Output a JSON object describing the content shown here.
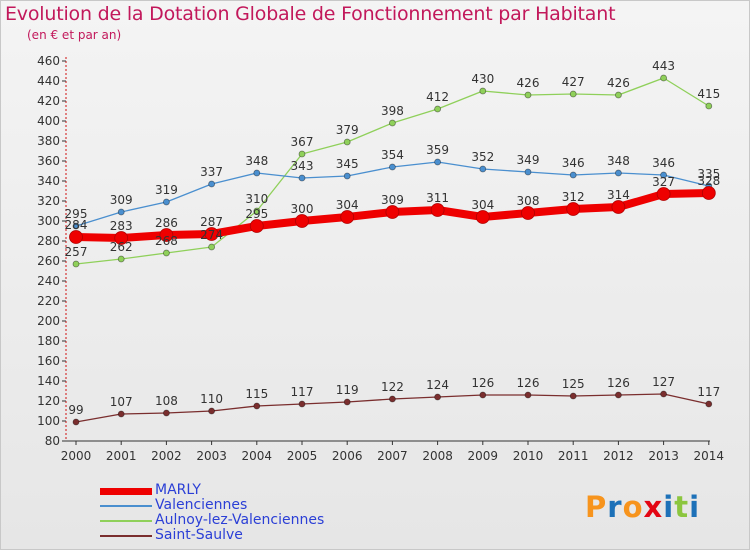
{
  "chart_data": {
    "type": "line",
    "title": "Evolution de la Dotation Globale de Fonctionnement par Habitant",
    "subtitle": "(en € et par an)",
    "x": [
      "2000",
      "2001",
      "2002",
      "2003",
      "2004",
      "2005",
      "2006",
      "2007",
      "2008",
      "2009",
      "2010",
      "2011",
      "2012",
      "2013",
      "2014"
    ],
    "ylim": [
      80,
      460
    ],
    "yticks": [
      80,
      100,
      120,
      140,
      160,
      180,
      200,
      220,
      240,
      260,
      280,
      300,
      320,
      340,
      360,
      380,
      400,
      420,
      440,
      460
    ],
    "grid": false,
    "legend_position": "bottom-left",
    "series": [
      {
        "name": "MARLY",
        "color": "#ee0000",
        "values": [
          284,
          283,
          286,
          287,
          295,
          300,
          304,
          309,
          311,
          304,
          308,
          312,
          314,
          327,
          328
        ],
        "labels": [
          "284",
          "283",
          "286",
          "287",
          "295",
          "300",
          "304",
          "309",
          "311",
          "304",
          "308",
          "312",
          "314",
          "327",
          "328"
        ]
      },
      {
        "name": "Valenciennes",
        "color": "#4a8fcf",
        "values": [
          295,
          309,
          319,
          337,
          348,
          343,
          345,
          354,
          359,
          352,
          349,
          346,
          348,
          346,
          335
        ],
        "labels": [
          "295",
          "309",
          "319",
          "337",
          "348",
          "343",
          "345",
          "354",
          "359",
          "352",
          "349",
          "346",
          "348",
          "346",
          "335"
        ]
      },
      {
        "name": "Aulnoy-lez-Valenciennes",
        "color": "#8fd05a",
        "values": [
          257,
          262,
          268,
          274,
          310,
          367,
          379,
          398,
          412,
          430,
          426,
          427,
          426,
          443,
          415
        ],
        "labels": [
          "257",
          "262",
          "268",
          "274",
          "310",
          "367",
          "379",
          "398",
          "412",
          "430",
          "426",
          "427",
          "426",
          "443",
          "415"
        ]
      },
      {
        "name": "Saint-Saulve",
        "color": "#7a2e2e",
        "values": [
          99,
          107,
          108,
          110,
          115,
          117,
          119,
          122,
          124,
          126,
          126,
          125,
          126,
          127,
          117
        ],
        "labels": [
          "99",
          "107",
          "108",
          "110",
          "115",
          "117",
          "119",
          "122",
          "124",
          "126",
          "126",
          "125",
          "126",
          "127",
          "117"
        ]
      }
    ]
  },
  "logo": {
    "text": "Proxiti",
    "letters": [
      "P",
      "r",
      "o",
      "x",
      "i",
      "t",
      "i"
    ],
    "colors": [
      "#f7941d",
      "#1d71b8",
      "#f7941d",
      "#e30613",
      "#1d71b8",
      "#8cc63f",
      "#1d71b8"
    ]
  }
}
